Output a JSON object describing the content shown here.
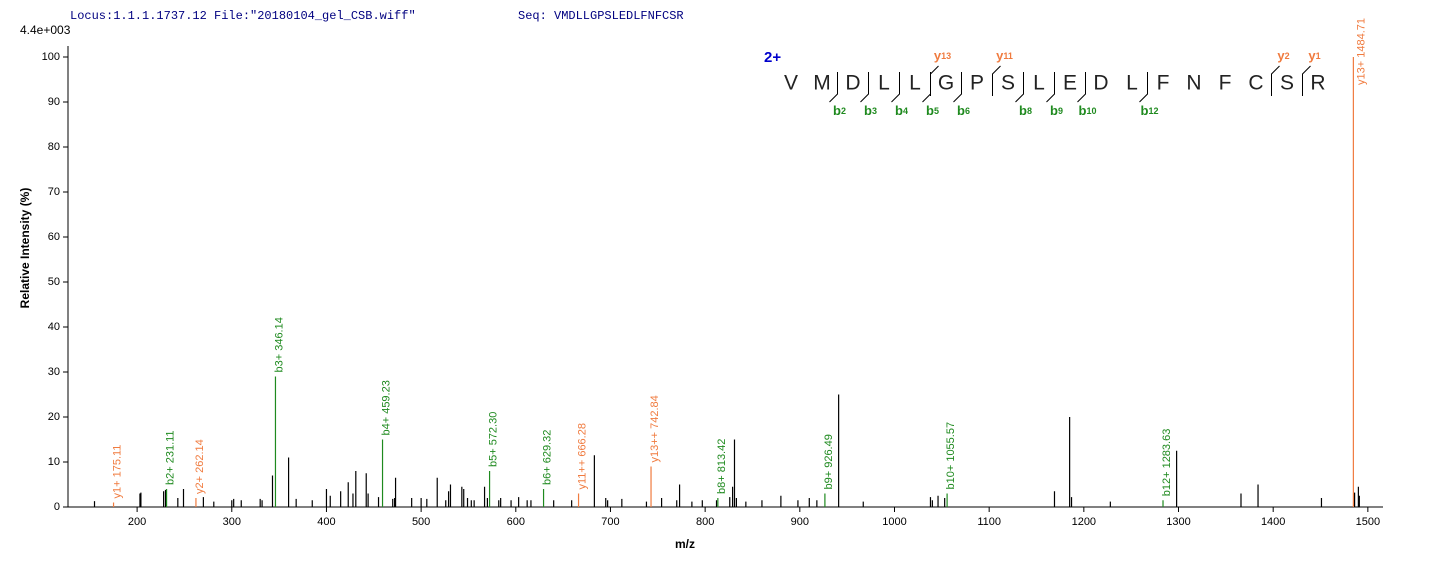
{
  "chart_data": {
    "type": "stem",
    "header": "Locus:1.1.1.1737.12 File:\"20180104_gel_CSB.wiff\"",
    "seq_label": "Seq: VMDLLGPSLEDLFNFCSR",
    "scale_label": "4.4e+003",
    "xlabel": "m/z",
    "ylabel": "Relative   Intensity (%)",
    "xlim": [
      127,
      1516
    ],
    "ylim": [
      0,
      102
    ],
    "xticks": [
      200,
      300,
      400,
      500,
      600,
      700,
      800,
      900,
      1000,
      1100,
      1200,
      1300,
      1400,
      1500
    ],
    "yticks": [
      0,
      10,
      20,
      30,
      40,
      50,
      60,
      70,
      80,
      90,
      100
    ],
    "series": [
      {
        "color": "#000000",
        "x": [
          155,
          203,
          204,
          228,
          230,
          243,
          249,
          270,
          281,
          300,
          302,
          310,
          330,
          332,
          343,
          360,
          368,
          385,
          400,
          404,
          415,
          423,
          428,
          431,
          442,
          444,
          455,
          470,
          472,
          473,
          490,
          500,
          506,
          517,
          526,
          529,
          531,
          543,
          545,
          549,
          553,
          556,
          567,
          570,
          582,
          584,
          595,
          603,
          612,
          616,
          640,
          659,
          683,
          695,
          697,
          712,
          738,
          754,
          770,
          773,
          786,
          797,
          812,
          826,
          829,
          831,
          833,
          843,
          860,
          880,
          898,
          910,
          918,
          941,
          967,
          1038,
          1040,
          1046,
          1053,
          1169,
          1185,
          1187,
          1228,
          1298,
          1366,
          1384,
          1451,
          1486,
          1490,
          1491
        ],
        "values": [
          1.3,
          3,
          3.2,
          3.5,
          3.8,
          2,
          4,
          2.2,
          1.2,
          1.5,
          1.8,
          1.5,
          1.8,
          1.5,
          7,
          11,
          1.8,
          1.5,
          4,
          2.5,
          3.5,
          5.5,
          3,
          8,
          7.5,
          3,
          2.2,
          1.8,
          2,
          6.5,
          2,
          2,
          1.8,
          6.5,
          1.5,
          3.5,
          5,
          4.5,
          4,
          2,
          1.5,
          1.5,
          4.5,
          2,
          1.5,
          2,
          1.5,
          2.2,
          1.5,
          1.5,
          1.5,
          1.5,
          11.5,
          2,
          1.5,
          1.8,
          1.2,
          2,
          1.5,
          5,
          1.2,
          1.5,
          1.5,
          2.2,
          4.5,
          15,
          2,
          1.2,
          1.5,
          2.5,
          1.5,
          2,
          1.5,
          25,
          1.2,
          2.2,
          1.5,
          2.5,
          2,
          3.5,
          20,
          2.2,
          1.2,
          12.5,
          3,
          5,
          2,
          3.2,
          4.5,
          2.5
        ]
      },
      {
        "color": "#1f8a1f",
        "x": [
          231.11,
          346.14,
          459.23,
          572.3,
          629.32,
          813.42,
          926.49,
          1055.57,
          1283.63
        ],
        "values": [
          4,
          29,
          15,
          8,
          4,
          2,
          3,
          3,
          1.5
        ],
        "labels": [
          "b2+ 231.11",
          "b3+ 346.14",
          "b4+ 459.23",
          "b5+ 572.30",
          "b6+ 629.32",
          "b8+ 813.42",
          "b9+ 926.49",
          "b10+ 1055.57",
          "b12+ 1283.63"
        ]
      },
      {
        "color": "#f07b3f",
        "x": [
          175.11,
          262.14,
          666.28,
          742.84,
          1484.71
        ],
        "values": [
          1,
          2,
          3,
          9,
          100
        ],
        "labels": [
          "y1+ 175.11",
          "y2+ 262.14",
          "y11++ 666.28",
          "y13++ 742.84",
          "y13+ 1484.71"
        ]
      }
    ],
    "sequence": {
      "charge": "2+",
      "residues": [
        "V",
        "M",
        "D",
        "L",
        "L",
        "G",
        "P",
        "S",
        "L",
        "E",
        "D",
        "L",
        "F",
        "N",
        "F",
        "C",
        "S",
        "R"
      ],
      "b_label": "b",
      "b_ions": [
        2,
        3,
        4,
        5,
        6,
        8,
        9,
        10,
        12
      ],
      "b_color": "#1f8a1f",
      "y_label": "y",
      "y_ions": [
        13,
        11,
        2,
        1
      ],
      "y_color": "#f07b3f",
      "charge_color": "#0000cc"
    }
  }
}
